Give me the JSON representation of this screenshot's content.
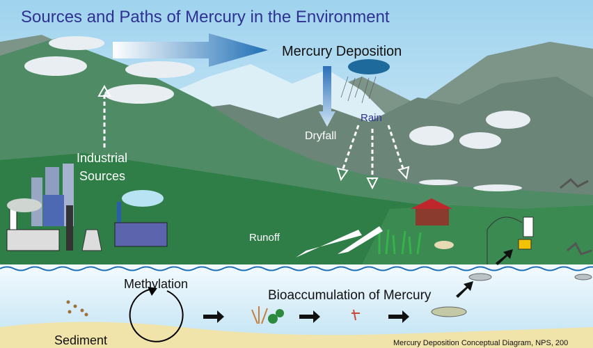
{
  "title": "Sources and Paths of Mercury in the Environment",
  "labels": {
    "mercury_deposition": "Mercury Deposition",
    "rain": "Rain",
    "dryfall": "Dryfall",
    "industrial_sources": [
      "Industrial",
      "Sources"
    ],
    "runoff": "Runoff",
    "methylation": "Methylation",
    "bioaccumulation": "Bioaccumulation of Mercury",
    "sediment": "Sediment",
    "credit": "Mercury Deposition Conceptual Diagram, NPS, 200"
  }
}
